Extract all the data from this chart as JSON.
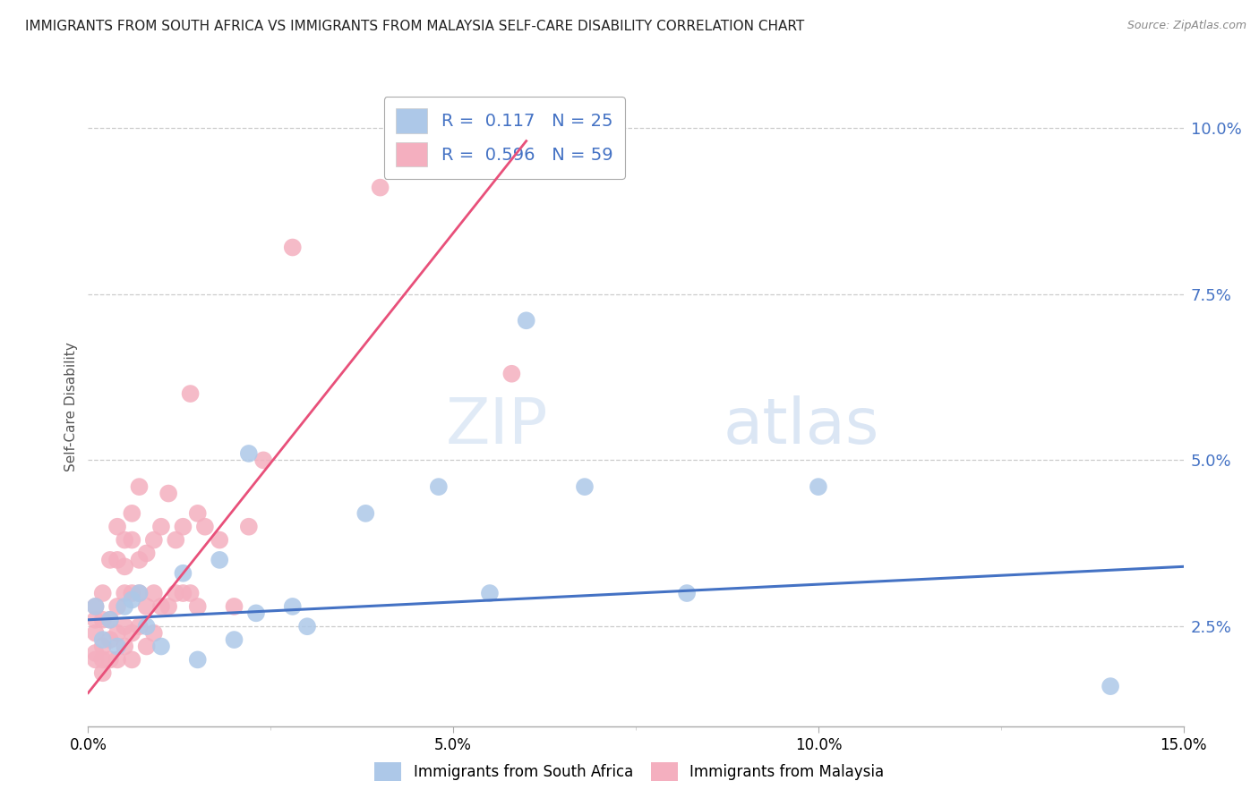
{
  "title": "IMMIGRANTS FROM SOUTH AFRICA VS IMMIGRANTS FROM MALAYSIA SELF-CARE DISABILITY CORRELATION CHART",
  "source": "Source: ZipAtlas.com",
  "ylabel": "Self-Care Disability",
  "ylabel_right_ticks": [
    "10.0%",
    "7.5%",
    "5.0%",
    "2.5%"
  ],
  "ylabel_right_vals": [
    0.1,
    0.075,
    0.05,
    0.025
  ],
  "xmin": 0.0,
  "xmax": 0.15,
  "ymin": 0.01,
  "ymax": 0.106,
  "r_blue": 0.117,
  "n_blue": 25,
  "r_pink": 0.596,
  "n_pink": 59,
  "blue_color": "#adc8e8",
  "pink_color": "#f4afbf",
  "blue_line_color": "#4472c4",
  "pink_line_color": "#e8507a",
  "legend_blue_label": "Immigrants from South Africa",
  "legend_pink_label": "Immigrants from Malaysia",
  "watermark_zip": "ZIP",
  "watermark_atlas": "atlas",
  "blue_scatter_x": [
    0.001,
    0.002,
    0.003,
    0.004,
    0.005,
    0.006,
    0.007,
    0.008,
    0.01,
    0.013,
    0.015,
    0.018,
    0.02,
    0.022,
    0.023,
    0.028,
    0.03,
    0.038,
    0.048,
    0.055,
    0.06,
    0.068,
    0.082,
    0.1,
    0.14
  ],
  "blue_scatter_y": [
    0.028,
    0.023,
    0.026,
    0.022,
    0.028,
    0.029,
    0.03,
    0.025,
    0.022,
    0.033,
    0.02,
    0.035,
    0.023,
    0.051,
    0.027,
    0.028,
    0.025,
    0.042,
    0.046,
    0.03,
    0.071,
    0.046,
    0.03,
    0.046,
    0.016
  ],
  "pink_scatter_x": [
    0.001,
    0.001,
    0.001,
    0.001,
    0.001,
    0.002,
    0.002,
    0.002,
    0.002,
    0.002,
    0.003,
    0.003,
    0.003,
    0.003,
    0.004,
    0.004,
    0.004,
    0.004,
    0.004,
    0.005,
    0.005,
    0.005,
    0.005,
    0.005,
    0.006,
    0.006,
    0.006,
    0.006,
    0.006,
    0.007,
    0.007,
    0.007,
    0.007,
    0.008,
    0.008,
    0.008,
    0.009,
    0.009,
    0.009,
    0.01,
    0.01,
    0.011,
    0.011,
    0.012,
    0.012,
    0.013,
    0.013,
    0.014,
    0.014,
    0.015,
    0.015,
    0.016,
    0.018,
    0.02,
    0.022,
    0.024,
    0.028,
    0.04,
    0.058
  ],
  "pink_scatter_y": [
    0.02,
    0.021,
    0.024,
    0.026,
    0.028,
    0.018,
    0.02,
    0.022,
    0.026,
    0.03,
    0.02,
    0.023,
    0.026,
    0.035,
    0.02,
    0.024,
    0.028,
    0.035,
    0.04,
    0.022,
    0.025,
    0.03,
    0.034,
    0.038,
    0.02,
    0.024,
    0.03,
    0.038,
    0.042,
    0.025,
    0.03,
    0.035,
    0.046,
    0.022,
    0.028,
    0.036,
    0.024,
    0.03,
    0.038,
    0.028,
    0.04,
    0.028,
    0.045,
    0.03,
    0.038,
    0.03,
    0.04,
    0.03,
    0.06,
    0.028,
    0.042,
    0.04,
    0.038,
    0.028,
    0.04,
    0.05,
    0.082,
    0.091,
    0.063
  ],
  "pink_trend_x_start": 0.0,
  "pink_trend_y_start": 0.015,
  "pink_trend_x_end": 0.06,
  "pink_trend_y_end": 0.098,
  "blue_trend_x_start": 0.0,
  "blue_trend_y_start": 0.026,
  "blue_trend_x_end": 0.15,
  "blue_trend_y_end": 0.034
}
